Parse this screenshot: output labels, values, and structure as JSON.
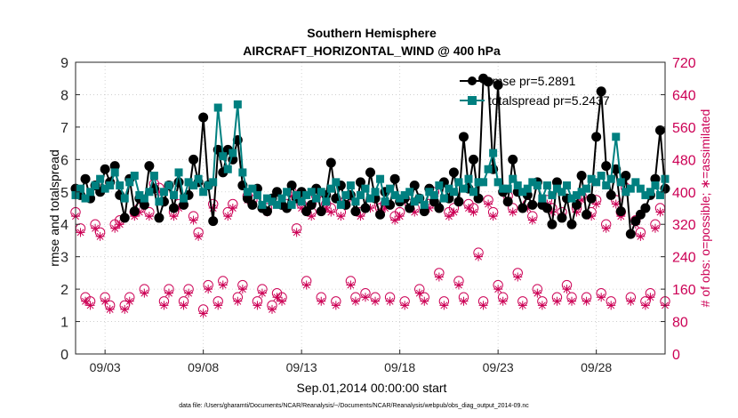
{
  "chart_data": {
    "type": "line",
    "title": "Southern Hemisphere",
    "subtitle": "AIRCRAFT_HORIZONTAL_WIND @ 400 hPa",
    "xlabel": "Sep.01,2014 00:00:00 start",
    "ylabel": "rmse and totalspread",
    "y2label": "# of obs: o=possible; ∗=assimilated",
    "footer": "data file: /Users/gharamti/Documents/NCAR/Reanalysis/~/Documents/NCAR/Reanalysis/webpub/obs_diag_output_2014-09.nc",
    "x_tick_labels": [
      "09/03",
      "09/08",
      "09/13",
      "09/18",
      "09/23",
      "09/28"
    ],
    "x_tick_days": [
      3,
      8,
      13,
      18,
      23,
      28
    ],
    "xlim": [
      1.5,
      31.5
    ],
    "ylim": [
      0,
      9
    ],
    "y_ticks": [
      0,
      1,
      2,
      3,
      4,
      5,
      6,
      7,
      8,
      9
    ],
    "y2lim": [
      0,
      720
    ],
    "y2_ticks": [
      0,
      80,
      160,
      240,
      320,
      400,
      480,
      560,
      640,
      720
    ],
    "legend": [
      "rmse pr=5.2891",
      "totalspread pr=5.2437"
    ],
    "colors": {
      "rmse": "#000000",
      "spread": "#008080",
      "obs": "#cc0055"
    },
    "x": [
      1.5,
      1.75,
      2,
      2.25,
      2.5,
      2.75,
      3,
      3.25,
      3.5,
      3.75,
      4,
      4.25,
      4.5,
      4.75,
      5,
      5.25,
      5.5,
      5.75,
      6,
      6.25,
      6.5,
      6.75,
      7,
      7.25,
      7.5,
      7.75,
      8,
      8.25,
      8.5,
      8.75,
      9,
      9.25,
      9.5,
      9.75,
      10,
      10.25,
      10.5,
      10.75,
      11,
      11.25,
      11.5,
      11.75,
      12,
      12.25,
      12.5,
      12.75,
      13,
      13.25,
      13.5,
      13.75,
      14,
      14.25,
      14.5,
      14.75,
      15,
      15.25,
      15.5,
      15.75,
      16,
      16.25,
      16.5,
      16.75,
      17,
      17.25,
      17.5,
      17.75,
      18,
      18.25,
      18.5,
      18.75,
      19,
      19.25,
      19.5,
      19.75,
      20,
      20.25,
      20.5,
      20.75,
      21,
      21.25,
      21.5,
      21.75,
      22,
      22.25,
      22.5,
      22.75,
      23,
      23.25,
      23.5,
      23.75,
      24,
      24.25,
      24.5,
      24.75,
      25,
      25.25,
      25.5,
      25.75,
      26,
      26.25,
      26.5,
      26.75,
      27,
      27.25,
      27.5,
      27.75,
      28,
      28.25,
      28.5,
      28.75,
      29,
      29.25,
      29.5,
      29.75,
      30,
      30.25,
      30.5,
      30.75,
      31,
      31.25,
      31.5
    ],
    "series": [
      {
        "name": "rmse",
        "values": [
          5.1,
          4.9,
          5.4,
          4.8,
          5.2,
          5.0,
          5.7,
          5.3,
          5.8,
          4.9,
          4.2,
          5.4,
          4.4,
          4.8,
          4.6,
          5.8,
          5.1,
          4.2,
          4.7,
          5.2,
          4.5,
          5.3,
          4.6,
          4.9,
          6.0,
          5.3,
          7.3,
          5.2,
          4.1,
          6.3,
          5.6,
          6.3,
          6.0,
          6.6,
          5.2,
          4.8,
          4.6,
          5.1,
          4.5,
          4.4,
          4.8,
          5.0,
          4.6,
          4.5,
          5.2,
          4.8,
          5.0,
          4.4,
          4.6,
          5.1,
          4.4,
          4.9,
          5.9,
          4.8,
          5.2,
          4.6,
          4.9,
          4.4,
          5.3,
          4.5,
          5.6,
          4.8,
          4.3,
          5.0,
          4.6,
          5.4,
          4.7,
          4.8,
          4.5,
          5.2,
          4.8,
          4.4,
          5.1,
          4.7,
          4.5,
          5.3,
          4.8,
          5.6,
          4.7,
          6.7,
          5.1,
          6.0,
          4.8,
          8.5,
          8.4,
          5.7,
          8.3,
          5.0,
          4.7,
          6.0,
          5.0,
          4.5,
          4.9,
          4.6,
          5.3,
          4.6,
          4.5,
          4.0,
          5.3,
          4.2,
          4.8,
          4.0,
          4.6,
          5.5,
          4.3,
          4.8,
          6.7,
          8.1,
          5.8,
          4.9,
          5.7,
          4.4,
          5.5,
          3.7,
          4.1,
          4.3,
          4.5,
          4.9,
          5.4,
          6.9,
          5.1
        ]
      },
      {
        "name": "totalspread",
        "values": [
          4.9,
          5.1,
          4.8,
          5.0,
          5.2,
          5.4,
          5.1,
          5.2,
          5.6,
          5.2,
          4.8,
          5.3,
          5.5,
          4.9,
          4.8,
          5.0,
          5.5,
          4.7,
          5.0,
          5.2,
          4.9,
          5.6,
          4.8,
          5.3,
          5.2,
          5.4,
          5.0,
          5.2,
          5.3,
          7.6,
          6.1,
          5.7,
          6.2,
          7.7,
          5.6,
          5.0,
          5.1,
          4.9,
          4.6,
          4.8,
          4.7,
          4.6,
          4.8,
          5.0,
          4.6,
          4.9,
          4.7,
          4.9,
          5.0,
          4.8,
          5.0,
          4.7,
          5.1,
          5.3,
          4.6,
          4.9,
          5.2,
          4.7,
          4.9,
          5.1,
          4.8,
          5.0,
          5.4,
          4.7,
          5.1,
          4.9,
          4.8,
          4.9,
          5.0,
          4.7,
          4.8,
          4.6,
          5.0,
          4.9,
          5.2,
          4.8,
          5.1,
          5.0,
          5.3,
          5.1,
          5.4,
          5.0,
          5.3,
          5.3,
          5.7,
          6.2,
          5.3,
          5.1,
          5.1,
          5.4,
          5.2,
          5.0,
          5.1,
          5.3,
          5.2,
          4.8,
          5.2,
          4.9,
          5.1,
          5.0,
          5.2,
          4.8,
          4.9,
          5.0,
          5.1,
          5.4,
          5.3,
          5.5,
          5.2,
          5.4,
          6.7,
          5.3,
          5.0,
          5.1,
          5.3,
          5.1,
          4.9,
          5.0,
          5.2,
          4.9,
          5.4
        ]
      },
      {
        "name": "obs_possible",
        "axis": "right",
        "values": [
          350,
          310,
          140,
          130,
          320,
          300,
          140,
          120,
          320,
          330,
          120,
          140,
          350,
          360,
          160,
          350,
          420,
          410,
          130,
          160,
          350,
          370,
          130,
          160,
          340,
          300,
          110,
          170,
          370,
          130,
          180,
          350,
          370,
          140,
          170,
          390,
          380,
          130,
          160,
          360,
          120,
          150,
          140,
          370,
          400,
          310,
          370,
          180,
          350,
          390,
          140,
          370,
          360,
          130,
          350,
          380,
          180,
          140,
          350,
          150,
          370,
          140,
          360,
          370,
          140,
          340,
          350,
          130,
          370,
          360,
          160,
          140,
          370,
          400,
          200,
          130,
          350,
          360,
          180,
          140,
          370,
          360,
          250,
          130,
          380,
          350,
          170,
          140,
          390,
          360,
          200,
          130,
          370,
          340,
          160,
          130,
          380,
          360,
          140,
          350,
          170,
          140,
          360,
          390,
          140,
          350,
          380,
          150,
          320,
          130,
          380,
          350,
          410,
          140,
          330,
          300,
          130,
          150,
          320,
          360,
          130
        ]
      },
      {
        "name": "obs_assimilated",
        "axis": "right",
        "values": [
          340,
          300,
          130,
          120,
          310,
          290,
          130,
          110,
          310,
          320,
          110,
          130,
          340,
          350,
          150,
          340,
          410,
          400,
          120,
          150,
          340,
          360,
          120,
          150,
          330,
          290,
          100,
          160,
          360,
          120,
          170,
          340,
          360,
          130,
          160,
          380,
          370,
          120,
          150,
          350,
          110,
          140,
          130,
          360,
          390,
          300,
          360,
          170,
          340,
          380,
          130,
          360,
          350,
          120,
          340,
          370,
          170,
          130,
          340,
          140,
          360,
          130,
          350,
          360,
          130,
          330,
          340,
          120,
          360,
          350,
          150,
          130,
          360,
          390,
          190,
          120,
          340,
          350,
          170,
          130,
          360,
          350,
          240,
          120,
          370,
          340,
          160,
          130,
          380,
          350,
          190,
          120,
          360,
          330,
          150,
          120,
          370,
          350,
          130,
          340,
          160,
          130,
          350,
          380,
          130,
          340,
          370,
          140,
          310,
          120,
          370,
          340,
          400,
          130,
          320,
          290,
          120,
          140,
          310,
          350,
          120
        ]
      }
    ]
  }
}
